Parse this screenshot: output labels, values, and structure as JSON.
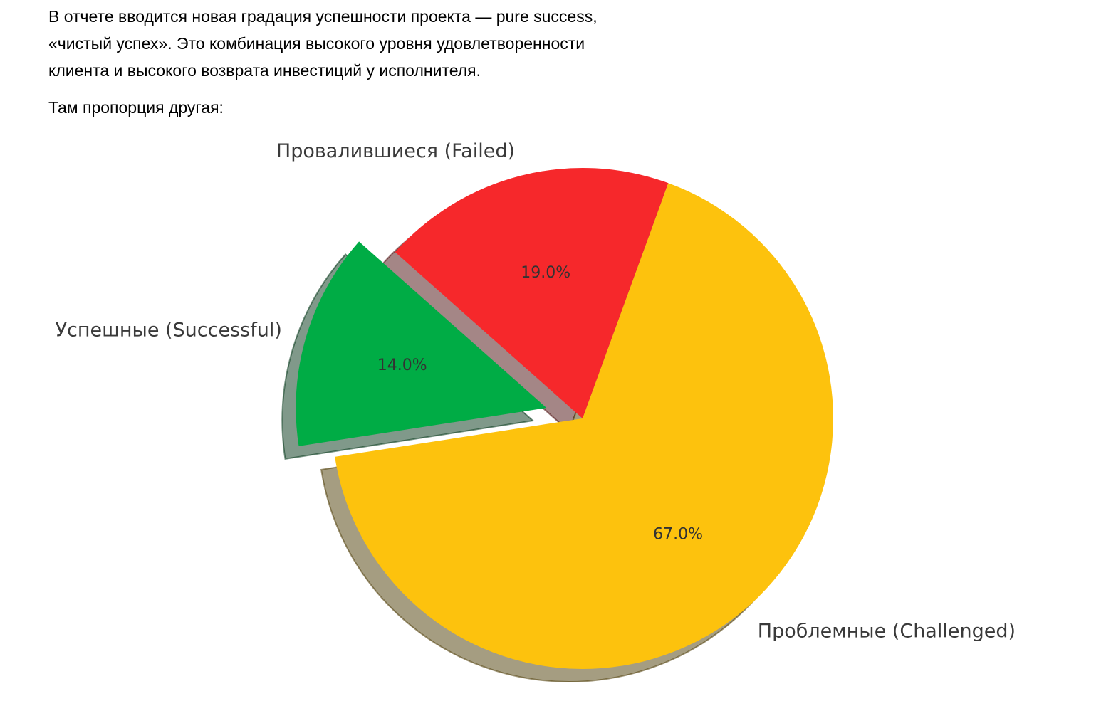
{
  "page": {
    "intro": "В отчете вводится новая градация успешности проекта — pure success,\n«чистый успех». Это комбинация высокого уровня удовлетворенности\nклиента и высокого возврата инвестиций у исполнителя.",
    "subtitle": "Там пропорция другая:"
  },
  "chart_data": {
    "type": "pie",
    "title": "",
    "categories": [
      "Провалившиеся (Failed)",
      "Успешные (Successful)",
      "Проблемные (Challenged)"
    ],
    "slice_keys": [
      "failed",
      "successful",
      "challenged"
    ],
    "values": [
      19.0,
      14.0,
      67.0
    ],
    "percent_labels": [
      "19.0%",
      "14.0%",
      "67.0%"
    ],
    "colors": [
      "#F6282B",
      "#00AC45",
      "#FDC20D"
    ],
    "explode": [
      0,
      0.15,
      0
    ],
    "startangle": 70,
    "counterclock": true,
    "shadow": true,
    "legend": "none",
    "label_color": "#3A3A3A",
    "percent_color": "#333333"
  }
}
